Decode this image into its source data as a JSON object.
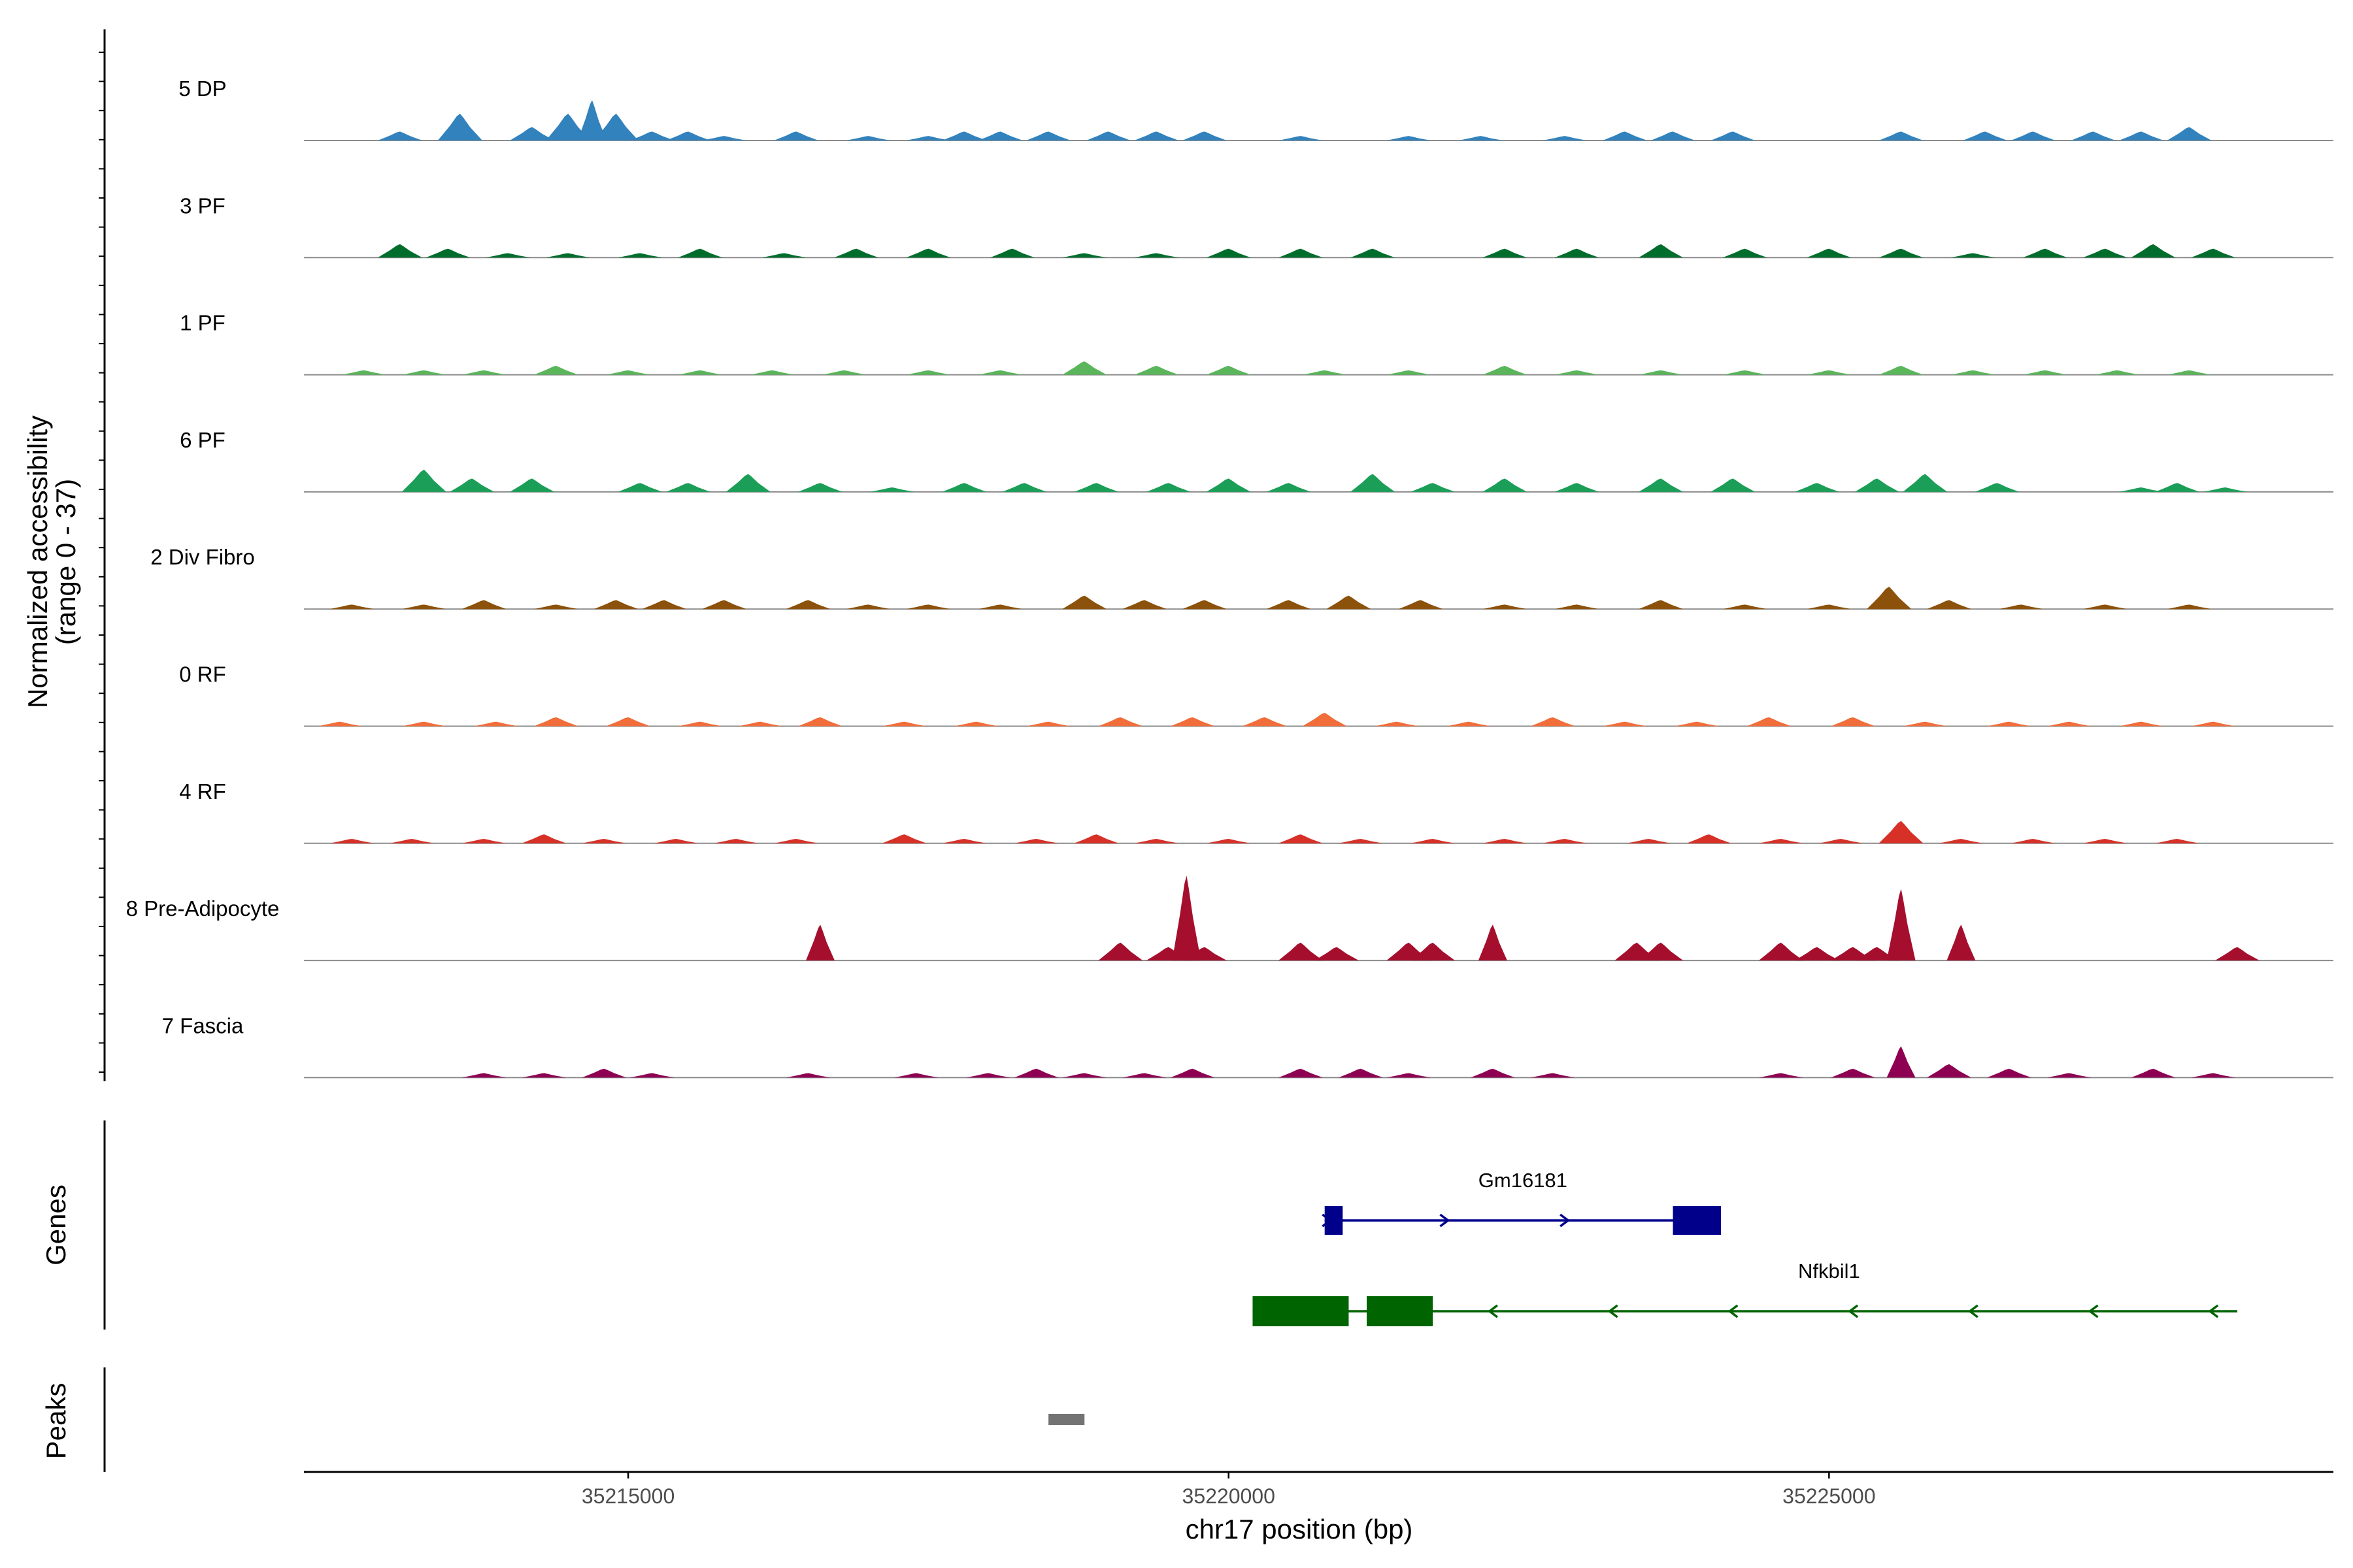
{
  "chart_data": {
    "type": "area",
    "title": "",
    "ylabel": "Normalized accessibility",
    "yrange_label": "(range 0 - 37)",
    "ylim": [
      0,
      37
    ],
    "xlabel": "chr17 position (bp)",
    "xlim": [
      35212300,
      35229200
    ],
    "xticks": [
      35215000,
      35220000,
      35225000
    ],
    "xtick_labels": [
      "35215000",
      "35220000",
      "35225000"
    ],
    "coverage_span": [
      35212300,
      35228400
    ],
    "tracks": [
      {
        "name": "5 DP",
        "color": "#3182bd",
        "peaks": [
          [
            35213100,
            2
          ],
          [
            35213600,
            6
          ],
          [
            35214200,
            3
          ],
          [
            35214500,
            6
          ],
          [
            35214700,
            9
          ],
          [
            35214900,
            6
          ],
          [
            35215200,
            2
          ],
          [
            35215500,
            2
          ],
          [
            35215800,
            1
          ],
          [
            35216400,
            2
          ],
          [
            35217000,
            1
          ],
          [
            35217500,
            1
          ],
          [
            35217800,
            2
          ],
          [
            35218100,
            2
          ],
          [
            35218500,
            2
          ],
          [
            35219000,
            2
          ],
          [
            35219400,
            2
          ],
          [
            35219800,
            2
          ],
          [
            35220600,
            1
          ],
          [
            35221500,
            1
          ],
          [
            35222100,
            1
          ],
          [
            35222800,
            1
          ],
          [
            35223300,
            2
          ],
          [
            35223700,
            2
          ],
          [
            35224200,
            2
          ],
          [
            35225600,
            2
          ],
          [
            35226300,
            2
          ],
          [
            35226700,
            2
          ],
          [
            35227200,
            2
          ],
          [
            35227600,
            2
          ],
          [
            35228000,
            3
          ]
        ]
      },
      {
        "name": "3 PF",
        "color": "#006d2c",
        "peaks": [
          [
            35213100,
            3
          ],
          [
            35213500,
            2
          ],
          [
            35214000,
            1
          ],
          [
            35214500,
            1
          ],
          [
            35215100,
            1
          ],
          [
            35215600,
            2
          ],
          [
            35216300,
            1
          ],
          [
            35216900,
            2
          ],
          [
            35217500,
            2
          ],
          [
            35218200,
            2
          ],
          [
            35218800,
            1
          ],
          [
            35219400,
            1
          ],
          [
            35220000,
            2
          ],
          [
            35220600,
            2
          ],
          [
            35221200,
            2
          ],
          [
            35222300,
            2
          ],
          [
            35222900,
            2
          ],
          [
            35223600,
            3
          ],
          [
            35224300,
            2
          ],
          [
            35225000,
            2
          ],
          [
            35225600,
            2
          ],
          [
            35226200,
            1
          ],
          [
            35226800,
            2
          ],
          [
            35227300,
            2
          ],
          [
            35227700,
            3
          ],
          [
            35228200,
            2
          ]
        ]
      },
      {
        "name": "1 PF",
        "color": "#5ab55b",
        "peaks": [
          [
            35212800,
            1
          ],
          [
            35213300,
            1
          ],
          [
            35213800,
            1
          ],
          [
            35214400,
            2
          ],
          [
            35215000,
            1
          ],
          [
            35215600,
            1
          ],
          [
            35216200,
            1
          ],
          [
            35216800,
            1
          ],
          [
            35217500,
            1
          ],
          [
            35218100,
            1
          ],
          [
            35218800,
            3
          ],
          [
            35219400,
            2
          ],
          [
            35220000,
            2
          ],
          [
            35220800,
            1
          ],
          [
            35221500,
            1
          ],
          [
            35222300,
            2
          ],
          [
            35222900,
            1
          ],
          [
            35223600,
            1
          ],
          [
            35224300,
            1
          ],
          [
            35225000,
            1
          ],
          [
            35225600,
            2
          ],
          [
            35226200,
            1
          ],
          [
            35226800,
            1
          ],
          [
            35227400,
            1
          ],
          [
            35228000,
            1
          ]
        ]
      },
      {
        "name": "6 PF",
        "color": "#1b9e57",
        "peaks": [
          [
            35213300,
            5
          ],
          [
            35213700,
            3
          ],
          [
            35214200,
            3
          ],
          [
            35215100,
            2
          ],
          [
            35215500,
            2
          ],
          [
            35216000,
            4
          ],
          [
            35216600,
            2
          ],
          [
            35217200,
            1
          ],
          [
            35217800,
            2
          ],
          [
            35218300,
            2
          ],
          [
            35218900,
            2
          ],
          [
            35219500,
            2
          ],
          [
            35220000,
            3
          ],
          [
            35220500,
            2
          ],
          [
            35221200,
            4
          ],
          [
            35221700,
            2
          ],
          [
            35222300,
            3
          ],
          [
            35222900,
            2
          ],
          [
            35223600,
            3
          ],
          [
            35224200,
            3
          ],
          [
            35224900,
            2
          ],
          [
            35225400,
            3
          ],
          [
            35225800,
            4
          ],
          [
            35226400,
            2
          ],
          [
            35227600,
            1
          ],
          [
            35227900,
            2
          ],
          [
            35228300,
            1
          ]
        ]
      },
      {
        "name": "2 Div Fibro",
        "color": "#8c510a",
        "peaks": [
          [
            35212700,
            1
          ],
          [
            35213300,
            1
          ],
          [
            35213800,
            2
          ],
          [
            35214400,
            1
          ],
          [
            35214900,
            2
          ],
          [
            35215300,
            2
          ],
          [
            35215800,
            2
          ],
          [
            35216500,
            2
          ],
          [
            35217000,
            1
          ],
          [
            35217500,
            1
          ],
          [
            35218100,
            1
          ],
          [
            35218800,
            3
          ],
          [
            35219300,
            2
          ],
          [
            35219800,
            2
          ],
          [
            35220500,
            2
          ],
          [
            35221000,
            3
          ],
          [
            35221600,
            2
          ],
          [
            35222300,
            1
          ],
          [
            35222900,
            1
          ],
          [
            35223600,
            2
          ],
          [
            35224300,
            1
          ],
          [
            35225000,
            1
          ],
          [
            35225500,
            5
          ],
          [
            35226000,
            2
          ],
          [
            35226600,
            1
          ],
          [
            35227300,
            1
          ],
          [
            35228000,
            1
          ]
        ]
      },
      {
        "name": "0 RF",
        "color": "#f16d3a",
        "peaks": [
          [
            35212600,
            1
          ],
          [
            35213300,
            1
          ],
          [
            35213900,
            1
          ],
          [
            35214400,
            2
          ],
          [
            35215000,
            2
          ],
          [
            35215600,
            1
          ],
          [
            35216100,
            1
          ],
          [
            35216600,
            2
          ],
          [
            35217300,
            1
          ],
          [
            35217900,
            1
          ],
          [
            35218500,
            1
          ],
          [
            35219100,
            2
          ],
          [
            35219700,
            2
          ],
          [
            35220300,
            2
          ],
          [
            35220800,
            3
          ],
          [
            35221400,
            1
          ],
          [
            35222000,
            1
          ],
          [
            35222700,
            2
          ],
          [
            35223300,
            1
          ],
          [
            35223900,
            1
          ],
          [
            35224500,
            2
          ],
          [
            35225200,
            2
          ],
          [
            35225800,
            1
          ],
          [
            35226500,
            1
          ],
          [
            35227000,
            1
          ],
          [
            35227600,
            1
          ],
          [
            35228200,
            1
          ]
        ]
      },
      {
        "name": "4 RF",
        "color": "#d73027",
        "peaks": [
          [
            35212700,
            1
          ],
          [
            35213200,
            1
          ],
          [
            35213800,
            1
          ],
          [
            35214300,
            2
          ],
          [
            35214800,
            1
          ],
          [
            35215400,
            1
          ],
          [
            35215900,
            1
          ],
          [
            35216400,
            1
          ],
          [
            35217300,
            2
          ],
          [
            35217800,
            1
          ],
          [
            35218400,
            1
          ],
          [
            35218900,
            2
          ],
          [
            35219400,
            1
          ],
          [
            35220000,
            1
          ],
          [
            35220600,
            2
          ],
          [
            35221100,
            1
          ],
          [
            35221700,
            1
          ],
          [
            35222300,
            1
          ],
          [
            35222800,
            1
          ],
          [
            35223500,
            1
          ],
          [
            35224000,
            2
          ],
          [
            35224600,
            1
          ],
          [
            35225100,
            1
          ],
          [
            35225600,
            5
          ],
          [
            35226100,
            1
          ],
          [
            35226700,
            1
          ],
          [
            35227300,
            1
          ],
          [
            35227900,
            1
          ]
        ]
      },
      {
        "name": "8 Pre-Adipocyte",
        "color": "#a50f2d",
        "peaks": [
          [
            35216600,
            8
          ],
          [
            35219100,
            4
          ],
          [
            35219500,
            3
          ],
          [
            35219650,
            19
          ],
          [
            35219800,
            3
          ],
          [
            35220600,
            4
          ],
          [
            35220900,
            3
          ],
          [
            35221500,
            4
          ],
          [
            35221700,
            4
          ],
          [
            35222200,
            8
          ],
          [
            35223400,
            4
          ],
          [
            35223600,
            4
          ],
          [
            35224600,
            4
          ],
          [
            35224900,
            3
          ],
          [
            35225200,
            3
          ],
          [
            35225400,
            3
          ],
          [
            35225600,
            16
          ],
          [
            35226100,
            8
          ],
          [
            35228400,
            3
          ]
        ]
      },
      {
        "name": "7 Fascia",
        "color": "#8e0152",
        "peaks": [
          [
            35213800,
            1
          ],
          [
            35214300,
            1
          ],
          [
            35214800,
            2
          ],
          [
            35215200,
            1
          ],
          [
            35216500,
            1
          ],
          [
            35217400,
            1
          ],
          [
            35218000,
            1
          ],
          [
            35218400,
            2
          ],
          [
            35218800,
            1
          ],
          [
            35219300,
            1
          ],
          [
            35219700,
            2
          ],
          [
            35220600,
            2
          ],
          [
            35221100,
            2
          ],
          [
            35221500,
            1
          ],
          [
            35222200,
            2
          ],
          [
            35222700,
            1
          ],
          [
            35224600,
            1
          ],
          [
            35225200,
            2
          ],
          [
            35225600,
            7
          ],
          [
            35226000,
            3
          ],
          [
            35226500,
            2
          ],
          [
            35227000,
            1
          ],
          [
            35227700,
            2
          ],
          [
            35228200,
            1
          ]
        ]
      }
    ],
    "genes_label": "Genes",
    "genes": [
      {
        "name": "Gm16181",
        "strand": "+",
        "color": "#00008b",
        "start": 35220800,
        "end": 35224100,
        "exons": [
          [
            35220800,
            35220950
          ],
          [
            35223700,
            35224100
          ]
        ],
        "arrows": [
          35220820,
          35221800,
          35222800
        ]
      },
      {
        "name": "Nfkbil1",
        "strand": "-",
        "color": "#006400",
        "start": 35220200,
        "end": 35228400,
        "exons": [
          [
            35220200,
            35221000
          ],
          [
            35221150,
            35221700
          ]
        ],
        "arrows": [
          35222200,
          35223200,
          35224200,
          35225200,
          35226200,
          35227200,
          35228200
        ]
      }
    ],
    "peaks_label": "Peaks",
    "peak_regions": [
      [
        35218500,
        35218800
      ]
    ]
  }
}
